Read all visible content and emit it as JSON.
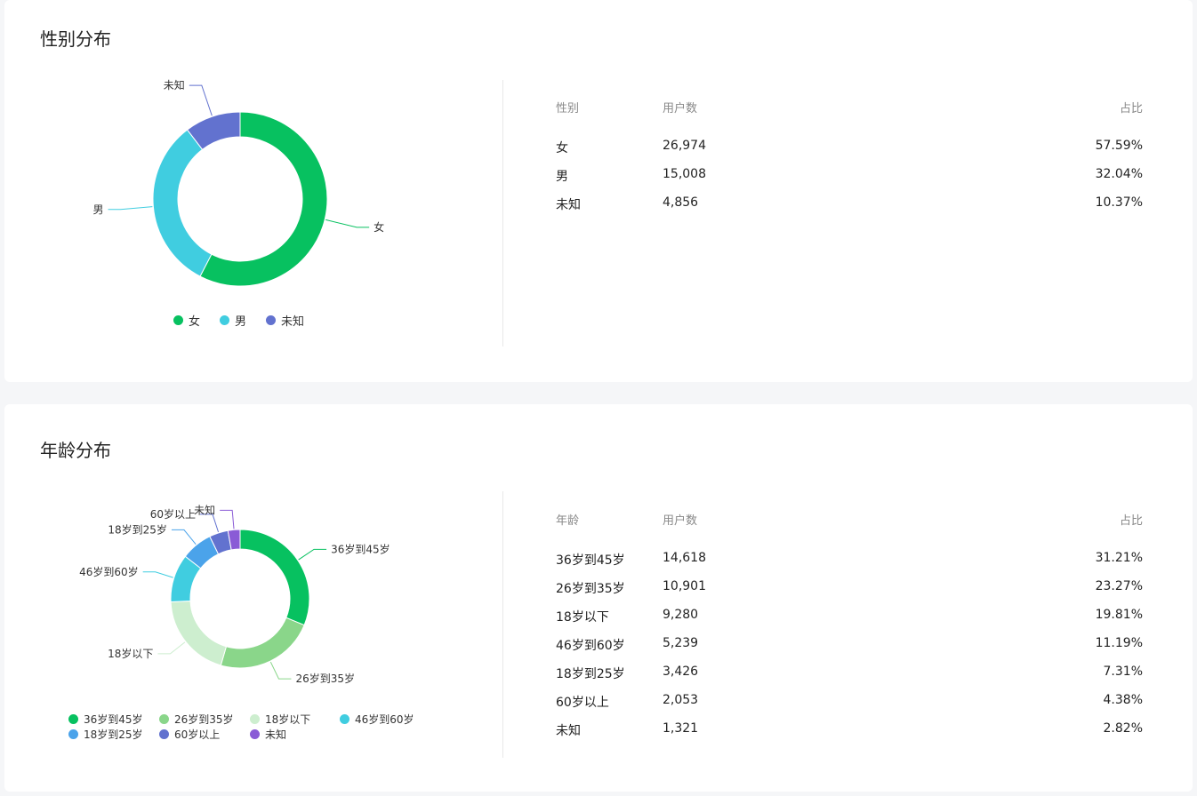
{
  "gender": {
    "title": "性别分布",
    "columns": [
      "性别",
      "用户数",
      "占比"
    ],
    "rows": [
      {
        "label": "女",
        "count": "26,974",
        "pct": "57.59%"
      },
      {
        "label": "男",
        "count": "15,008",
        "pct": "32.04%"
      },
      {
        "label": "未知",
        "count": "4,856",
        "pct": "10.37%"
      }
    ]
  },
  "age": {
    "title": "年龄分布",
    "columns": [
      "年龄",
      "用户数",
      "占比"
    ],
    "rows": [
      {
        "label": "36岁到45岁",
        "count": "14,618",
        "pct": "31.21%"
      },
      {
        "label": "26岁到35岁",
        "count": "10,901",
        "pct": "23.27%"
      },
      {
        "label": "18岁以下",
        "count": "9,280",
        "pct": "19.81%"
      },
      {
        "label": "46岁到60岁",
        "count": "5,239",
        "pct": "11.19%"
      },
      {
        "label": "18岁到25岁",
        "count": "3,426",
        "pct": "7.31%"
      },
      {
        "label": "60岁以上",
        "count": "2,053",
        "pct": "4.38%"
      },
      {
        "label": "未知",
        "count": "1,321",
        "pct": "2.82%"
      }
    ]
  },
  "chart_data": [
    {
      "type": "pie",
      "title": "性别分布",
      "categories": [
        "女",
        "男",
        "未知"
      ],
      "values": [
        26974,
        15008,
        4856
      ],
      "colors": [
        "#07c160",
        "#40cde0",
        "#6272cf"
      ],
      "legend": "bottom"
    },
    {
      "type": "pie",
      "title": "年龄分布",
      "categories": [
        "36岁到45岁",
        "26岁到35岁",
        "18岁以下",
        "46岁到60岁",
        "18岁到25岁",
        "60岁以上",
        "未知"
      ],
      "values": [
        14618,
        10901,
        9280,
        5239,
        3426,
        2053,
        1321
      ],
      "colors": [
        "#07c160",
        "#8ad68a",
        "#cdeecf",
        "#40cde0",
        "#4ba3ea",
        "#6272cf",
        "#8a5bd6"
      ],
      "legend": "bottom"
    }
  ]
}
